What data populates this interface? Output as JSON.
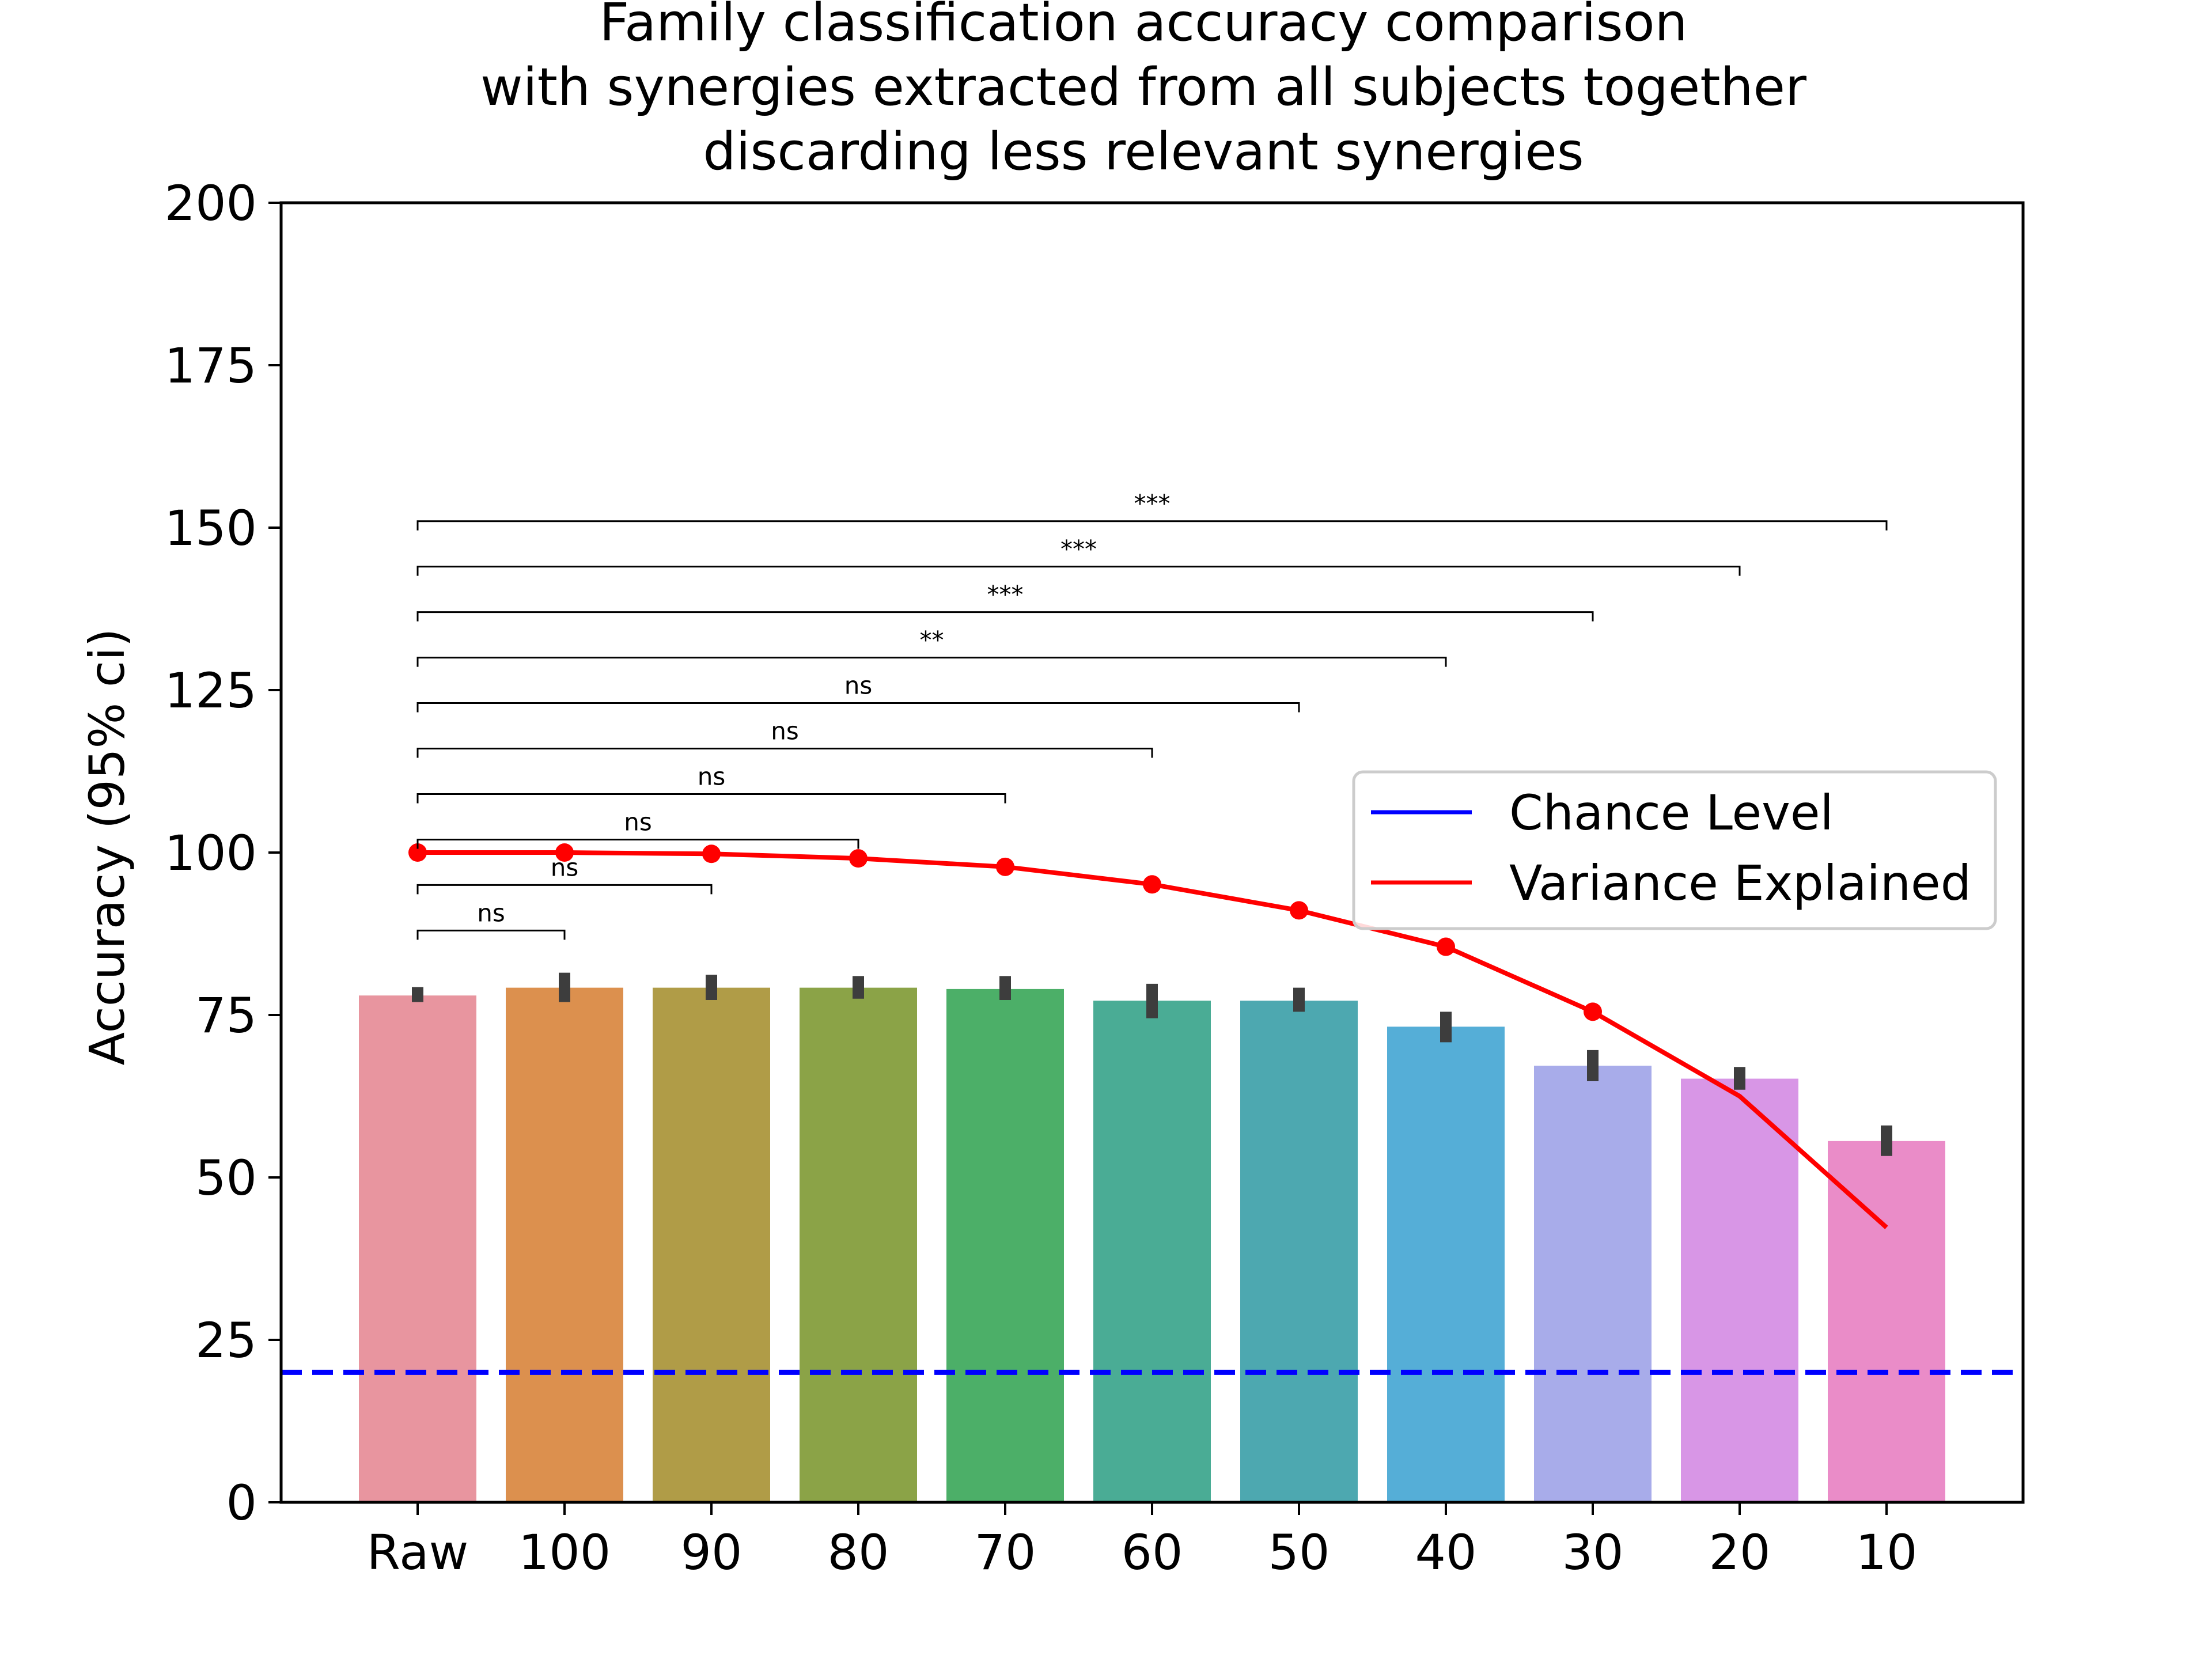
{
  "chart_data": {
    "type": "bar",
    "title": [
      "Family classification accuracy comparison",
      "with synergies extracted from all subjects together",
      "discarding less relevant synergies"
    ],
    "xlabel": "",
    "ylabel": "Accuracy (95% ci)",
    "ylim": [
      0,
      200
    ],
    "yticks": [
      "0",
      "25",
      "50",
      "75",
      "100",
      "125",
      "150",
      "175",
      "200"
    ],
    "categories": [
      "Raw",
      "100",
      "90",
      "80",
      "70",
      "60",
      "50",
      "40",
      "30",
      "20",
      "10"
    ],
    "bars": {
      "values": [
        78,
        79.2,
        79.2,
        79.2,
        79,
        77.2,
        77.2,
        73.2,
        67.2,
        65.2,
        55.6
      ],
      "ci_low": [
        77,
        77,
        77.3,
        77.5,
        77.3,
        74.5,
        75.5,
        70.8,
        64.8,
        63.5,
        53.3
      ],
      "ci_high": [
        79.3,
        81.5,
        81.2,
        81,
        81,
        79.8,
        79.2,
        75.5,
        69.6,
        67,
        58
      ],
      "colors": [
        "#e8959f",
        "#dc904e",
        "#b09c47",
        "#8ba347",
        "#4caf68",
        "#4aac95",
        "#4da8b0",
        "#55aed7",
        "#a8acea",
        "#d896e6",
        "#ea8cc8"
      ]
    },
    "series": [
      {
        "name": "Chance Level",
        "type": "hline",
        "value": 20,
        "color": "#0000ff",
        "style": "dashed"
      },
      {
        "name": "Variance Explained",
        "type": "line",
        "values": [
          100,
          100,
          99.8,
          99.1,
          97.8,
          95.1,
          91.1,
          85.5,
          75.5,
          62.5,
          42.3
        ],
        "marker_indices": [
          0,
          1,
          2,
          3,
          4,
          5,
          6,
          7,
          8
        ],
        "color": "#ff0000"
      }
    ],
    "significance": [
      {
        "from": 0,
        "to": 1,
        "label": "ns",
        "level": 88
      },
      {
        "from": 0,
        "to": 2,
        "label": "ns",
        "level": 95
      },
      {
        "from": 0,
        "to": 3,
        "label": "ns",
        "level": 102
      },
      {
        "from": 0,
        "to": 4,
        "label": "ns",
        "level": 109
      },
      {
        "from": 0,
        "to": 5,
        "label": "ns",
        "level": 116
      },
      {
        "from": 0,
        "to": 6,
        "label": "ns",
        "level": 123
      },
      {
        "from": 0,
        "to": 7,
        "label": "**",
        "level": 130
      },
      {
        "from": 0,
        "to": 8,
        "label": "***",
        "level": 137
      },
      {
        "from": 0,
        "to": 9,
        "label": "***",
        "level": 144
      },
      {
        "from": 0,
        "to": 10,
        "label": "***",
        "level": 151
      }
    ],
    "legend": {
      "placement": "right",
      "entries": [
        "Chance Level",
        "Variance Explained"
      ]
    },
    "grid": false
  }
}
